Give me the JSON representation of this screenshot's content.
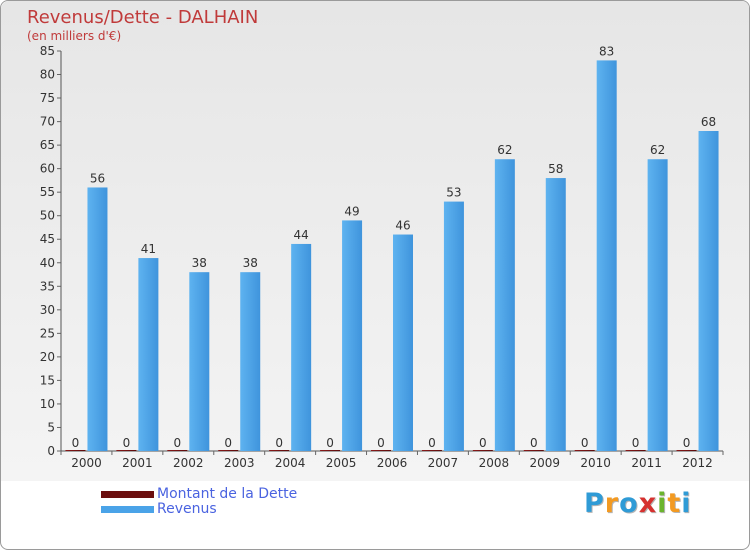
{
  "header": {
    "title": "Revenus/Dette - DALHAIN",
    "subtitle": "(en milliers d'€)"
  },
  "logo": {
    "text": "Proxiti",
    "letters": [
      "P",
      "r",
      "o",
      "x",
      "i",
      "t",
      "i"
    ],
    "letter_colors": [
      "#2f9bd6",
      "#f39a21",
      "#2f9bd6",
      "#d6312f",
      "#6ab42d",
      "#f39a21",
      "#2f9bd6"
    ]
  },
  "chart_data": {
    "type": "bar",
    "title": "Revenus/Dette - DALHAIN",
    "subtitle": "(en milliers d'€)",
    "categories": [
      "2000",
      "2001",
      "2002",
      "2003",
      "2004",
      "2005",
      "2006",
      "2007",
      "2008",
      "2009",
      "2010",
      "2011",
      "2012"
    ],
    "series": [
      {
        "name": "Montant de la Dette",
        "color": "#6b0e0e",
        "values": [
          0,
          0,
          0,
          0,
          0,
          0,
          0,
          0,
          0,
          0,
          0,
          0,
          0
        ]
      },
      {
        "name": "Revenus",
        "color": "#4aa3e8",
        "values": [
          56,
          41,
          38,
          38,
          44,
          49,
          46,
          53,
          62,
          58,
          83,
          62,
          68
        ]
      }
    ],
    "ylim": [
      0,
      85
    ],
    "yticks": [
      0,
      5,
      10,
      15,
      20,
      25,
      30,
      35,
      40,
      45,
      50,
      55,
      60,
      65,
      70,
      75,
      80,
      85
    ],
    "grid": false,
    "legend_position": "bottom-left"
  }
}
